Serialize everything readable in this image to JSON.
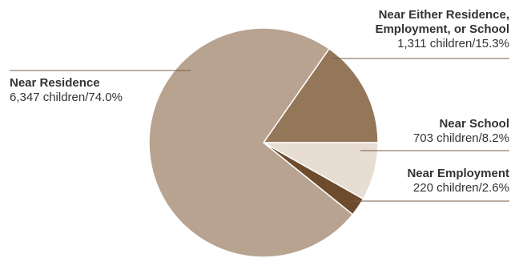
{
  "chart_data": {
    "type": "pie",
    "slices": [
      {
        "name": "Near Residence",
        "detail": "6,347 children/74.0%",
        "children": 6347,
        "percent": 74.0,
        "color": "#b8a390"
      },
      {
        "name": "Near Either Residence, Employment, or School",
        "name_lines": [
          "Near Either Residence,",
          "Employment, or School"
        ],
        "detail": "1,311 children/15.3%",
        "children": 1311,
        "percent": 15.3,
        "color": "#947658"
      },
      {
        "name": "Near School",
        "detail": "703 children/8.2%",
        "children": 703,
        "percent": 8.2,
        "color": "#e8ddd2"
      },
      {
        "name": "Near Employment",
        "detail": "220 children/2.6%",
        "children": 220,
        "percent": 2.6,
        "color": "#6e4b2c"
      }
    ]
  }
}
